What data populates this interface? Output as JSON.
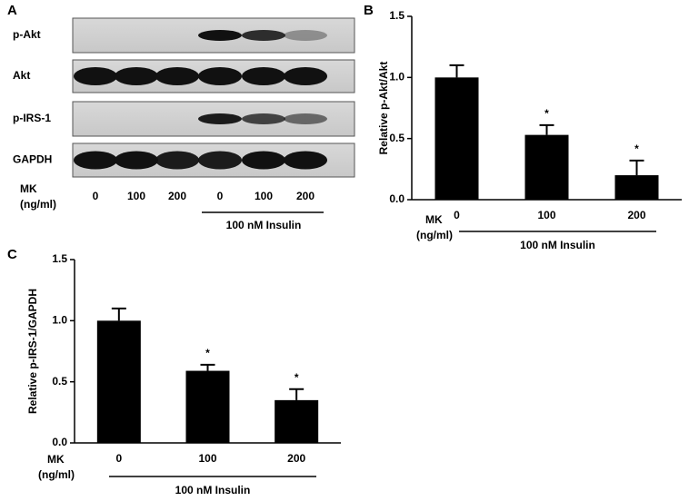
{
  "blot": {
    "panel_label": "A",
    "rows": [
      "p-Akt",
      "Akt",
      "p-IRS-1",
      "GAPDH"
    ],
    "group_label": [
      "MK",
      "(ng/ml)"
    ],
    "lanes": [
      "0",
      "100",
      "200",
      "0",
      "100",
      "200"
    ],
    "treatment": "100 nM Insulin"
  },
  "chart_data": [
    {
      "type": "bar",
      "panel_label": "B",
      "y_label": "Relative p-Akt/Akt",
      "group_label": [
        "MK",
        "(ng/ml)"
      ],
      "treatment": "100 nM Insulin",
      "categories": [
        "0",
        "100",
        "200"
      ],
      "values": [
        1.0,
        0.53,
        0.2
      ],
      "errors": [
        0.1,
        0.08,
        0.12
      ],
      "color": "#000000",
      "annotations": [
        {
          "category": "100",
          "text": "*"
        },
        {
          "category": "200",
          "text": "*"
        }
      ],
      "ylim": [
        0,
        1.5
      ],
      "yticks": [
        {
          "value": 0,
          "label": "0.0"
        },
        0.5,
        {
          "value": 1,
          "label": "1.0"
        },
        1.5
      ]
    },
    {
      "type": "bar",
      "panel_label": "C",
      "y_label": "Relative p-IRS-1/GAPDH",
      "group_label": [
        "MK",
        "(ng/ml)"
      ],
      "treatment": "100 nM Insulin",
      "categories": [
        "0",
        "100",
        "200"
      ],
      "values": [
        1.0,
        0.59,
        0.35
      ],
      "errors": [
        0.1,
        0.05,
        0.09
      ],
      "color": "#000000",
      "annotations": [
        {
          "category": "100",
          "text": "*"
        },
        {
          "category": "200",
          "text": "*"
        }
      ],
      "ylim": [
        0,
        1.5
      ],
      "yticks": [
        {
          "value": 0,
          "label": "0.0"
        },
        0.5,
        {
          "value": 1,
          "label": "1.0"
        },
        1.5
      ]
    }
  ]
}
